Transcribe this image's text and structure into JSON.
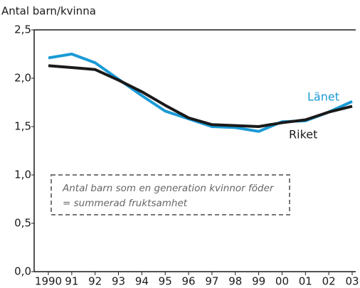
{
  "chart_data": {
    "type": "line",
    "y_axis_label": "Antal barn/kvinna",
    "categories": [
      "1990",
      "91",
      "92",
      "93",
      "94",
      "95",
      "96",
      "97",
      "98",
      "99",
      "00",
      "01",
      "02",
      "03"
    ],
    "series": [
      {
        "name": "Länet",
        "color": "#1a9ad6",
        "values": [
          2.21,
          2.25,
          2.16,
          1.99,
          1.82,
          1.66,
          1.58,
          1.5,
          1.49,
          1.45,
          1.55,
          1.56,
          1.65,
          1.76
        ]
      },
      {
        "name": "Riket",
        "color": "#1a1a1a",
        "values": [
          2.13,
          2.11,
          2.09,
          1.98,
          1.86,
          1.72,
          1.59,
          1.52,
          1.51,
          1.5,
          1.54,
          1.57,
          1.65,
          1.71
        ]
      }
    ],
    "ylim": [
      0,
      2.5
    ],
    "yticks": [
      {
        "value": 0,
        "label": "0,0"
      },
      {
        "value": 0.5,
        "label": "0,5"
      },
      {
        "value": 1,
        "label": "1,0"
      },
      {
        "value": 1.5,
        "label": "1,5"
      },
      {
        "value": 2,
        "label": "2,0"
      },
      {
        "value": 2.5,
        "label": "2,5"
      }
    ],
    "annotation": [
      "Antal barn som en generation kvinnor föder",
      "= summerad fruktsamhet"
    ]
  }
}
